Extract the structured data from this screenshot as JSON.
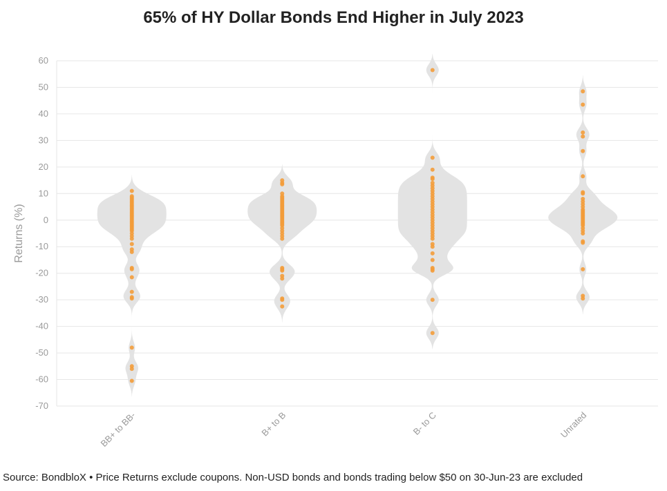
{
  "chart_data": {
    "type": "violin",
    "title": "65% of HY Dollar Bonds End Higher in July 2023",
    "ylabel": "Returns (%)",
    "xlabel": "",
    "ylim": [
      -70,
      60
    ],
    "yticks": [
      60,
      50,
      40,
      30,
      20,
      10,
      0,
      -10,
      -20,
      -30,
      -40,
      -50,
      -60,
      -70
    ],
    "grid": true,
    "colors": {
      "points": "#f39c3a",
      "violin": "#e3e3e3",
      "grid": "#e6e6e6"
    },
    "categories": [
      "BB+ to BB-",
      "B+ to B",
      "B- to C",
      "Unrated"
    ],
    "series": [
      {
        "category": "BB+ to BB-",
        "points": [
          11,
          9,
          8.5,
          8,
          7.5,
          7,
          6.5,
          6,
          5.5,
          5,
          4.5,
          4,
          3.5,
          3,
          2.5,
          2,
          1.5,
          1,
          0.5,
          0,
          -0.5,
          -1,
          -1.5,
          -2,
          -2.5,
          -3,
          -3.5,
          -4,
          -5,
          -6,
          -7,
          -9,
          -11,
          -12,
          -18,
          -18.5,
          -21.5,
          -27,
          -29,
          -29.5,
          -48,
          -55,
          -56,
          -60.5
        ]
      },
      {
        "category": "B+ to B",
        "points": [
          15,
          14,
          13.5,
          10,
          9,
          8.5,
          8,
          7.5,
          7,
          6.5,
          6,
          5.5,
          5,
          4.5,
          4,
          3.5,
          3,
          2.5,
          2,
          1.5,
          1,
          0.5,
          0,
          -0.5,
          -1,
          -1.5,
          -2,
          -3,
          -4,
          -5,
          -6,
          -7,
          -18,
          -18.5,
          -19,
          -21,
          -22,
          -29.5,
          -30,
          -32.5
        ]
      },
      {
        "category": "B- to C",
        "points": [
          56.5,
          23.5,
          19,
          16,
          15.5,
          14,
          13,
          12,
          11,
          10,
          9,
          8,
          7,
          6,
          5,
          4,
          3,
          2,
          1,
          0,
          -1,
          -2,
          -3,
          -4,
          -5,
          -6,
          -7,
          -9,
          -10,
          -12.5,
          -15,
          -18,
          -18.5,
          -19,
          -30,
          -42.5
        ]
      },
      {
        "category": "Unrated",
        "points": [
          48.5,
          43.5,
          33,
          31.5,
          26,
          16.5,
          10.5,
          10,
          8,
          7,
          6,
          5,
          4,
          3.5,
          3,
          2.5,
          2,
          1.5,
          1,
          0.5,
          0,
          -0.5,
          -1,
          -1.5,
          -2,
          -3,
          -4,
          -5,
          -8,
          -8.5,
          -18.5,
          -28.5,
          -29.5
        ]
      }
    ]
  },
  "footer": "Source: BondbloX • Price Returns exclude coupons. Non-USD bonds and bonds trading below $50 on 30-Jun-23 are excluded"
}
